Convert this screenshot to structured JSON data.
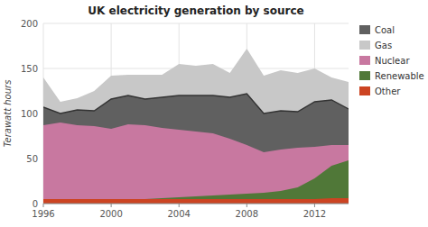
{
  "chart_data": {
    "type": "area",
    "title": "UK electricity generation by source",
    "ylabel": "Terawatt hours",
    "x": [
      1996,
      1997,
      1998,
      1999,
      2000,
      2001,
      2002,
      2003,
      2004,
      2005,
      2006,
      2007,
      2008,
      2009,
      2010,
      2011,
      2012,
      2013,
      2014
    ],
    "series": [
      {
        "name": "Coal",
        "color": "#606060",
        "values": [
          107,
          100,
          104,
          103,
          116,
          120,
          116,
          118,
          120,
          120,
          120,
          118,
          122,
          100,
          103,
          102,
          113,
          115,
          105
        ]
      },
      {
        "name": "Gas",
        "color": "#c8c8c8",
        "values": [
          140,
          113,
          117,
          125,
          142,
          143,
          143,
          143,
          155,
          153,
          155,
          145,
          172,
          142,
          148,
          145,
          150,
          140,
          135
        ]
      },
      {
        "name": "Nuclear",
        "color": "#c878a0",
        "values": [
          87,
          90,
          87,
          86,
          83,
          88,
          87,
          84,
          82,
          80,
          78,
          72,
          65,
          57,
          60,
          62,
          63,
          65,
          65
        ]
      },
      {
        "name": "Renewable",
        "color": "#507838",
        "values": [
          4,
          4,
          4,
          4,
          5,
          5,
          5,
          6,
          7,
          8,
          9,
          10,
          11,
          12,
          14,
          18,
          28,
          42,
          48
        ]
      },
      {
        "name": "Other",
        "color": "#cc4422",
        "values": [
          5,
          5,
          5,
          5,
          5,
          5,
          5,
          5,
          5,
          5,
          5,
          5,
          5,
          5,
          5,
          5,
          5,
          6,
          6
        ]
      }
    ],
    "xlim": [
      1996,
      2014
    ],
    "xticks": [
      1996,
      2000,
      2004,
      2008,
      2012
    ],
    "ylim": [
      0,
      200
    ],
    "yticks": [
      0,
      50,
      100,
      150,
      200
    ],
    "stacked": false,
    "grid": true,
    "legend": "right"
  }
}
